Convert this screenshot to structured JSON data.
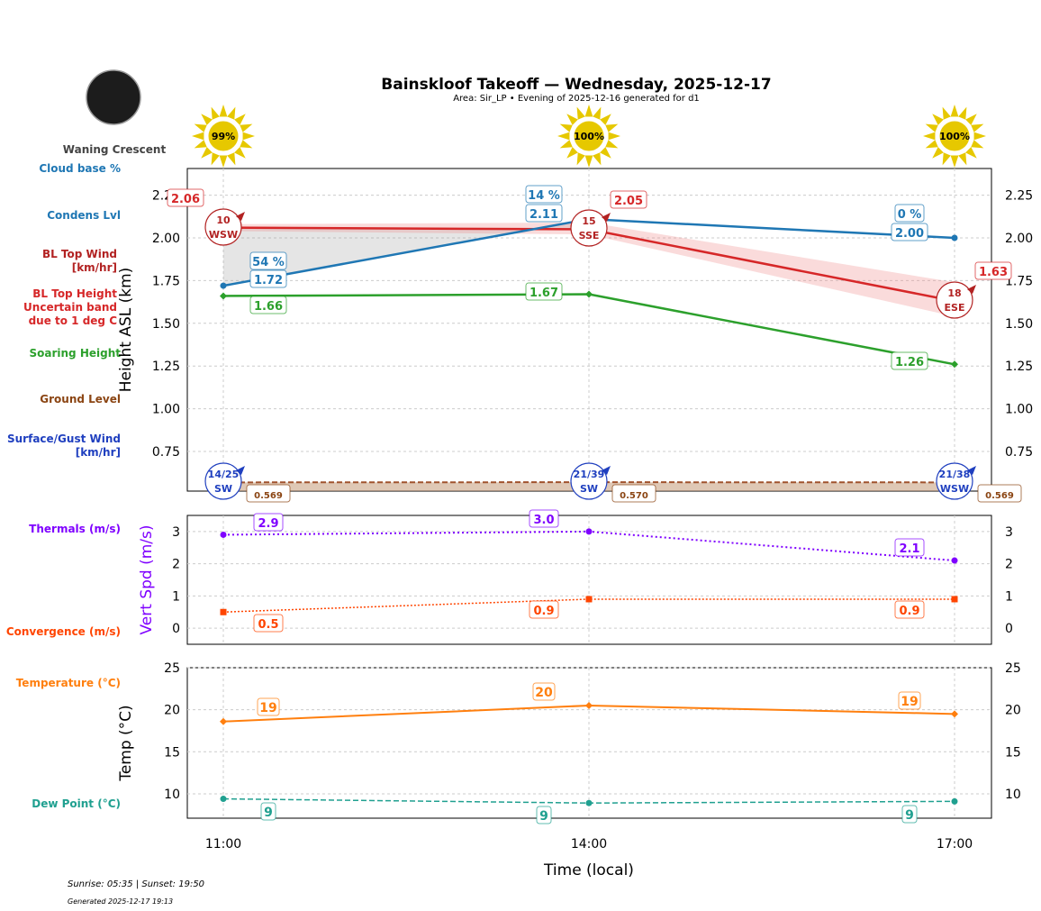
{
  "title": "Bainskloof Takeoff — Wednesday, 2025-12-17",
  "subtitle": "Area: Sir_LP • Evening of 2025-12-16 generated for d1",
  "moon_phase": "Waning Crescent",
  "footer": {
    "sun": "Sunrise: 05:35 | Sunset: 19:50",
    "generated": "Generated 2025-12-17 19:13"
  },
  "side_labels": [
    {
      "text": "Cloud base %",
      "color": "#1f77b4"
    },
    {
      "text": "Condens Lvl",
      "color": "#1f77b4"
    },
    {
      "text": "BL Top Wind [km/hr]",
      "color": "#b22222"
    },
    {
      "text": "BL Top Height Uncertain band due to 1 deg C",
      "color": "#d62728"
    },
    {
      "text": "Soaring Height",
      "color": "#2ca02c"
    },
    {
      "text": "Ground Level",
      "color": "#8b4513"
    },
    {
      "text": "Surface/Gust Wind [km/hr]",
      "color": "#1f3fbf"
    },
    {
      "text": "Thermals (m/s)",
      "color": "#7f00ff"
    },
    {
      "text": "Convergence (m/s)",
      "color": "#ff4500"
    },
    {
      "text": "Temperature (°C)",
      "color": "#ff7f0e"
    },
    {
      "text": "Dew Point (°C)",
      "color": "#20a090"
    }
  ],
  "chart_data": [
    {
      "type": "line",
      "xlabel": "",
      "ylabel": "Height ASL (km)",
      "ylim": [
        0.518,
        2.406
      ],
      "yticks": [
        "0.75",
        "1.00",
        "1.25",
        "1.50",
        "1.75",
        "2.00",
        "2.25"
      ],
      "grid": true,
      "x": [
        "11:00",
        "14:00",
        "17:00"
      ],
      "sun_percent": [
        "99%",
        "100%",
        "100%"
      ],
      "cloud_base_percent": [
        "54 %",
        "14 %",
        "0 %"
      ],
      "condens_lvl": [
        1.72,
        2.11,
        2.0
      ],
      "bl_top": [
        2.06,
        2.05,
        1.63
      ],
      "bl_top_band": [
        [
          2.04,
          2.08
        ],
        [
          2.02,
          2.09
        ],
        [
          1.54,
          1.74
        ]
      ],
      "bl_wind": [
        {
          "speed": "10",
          "dir": "WSW"
        },
        {
          "speed": "15",
          "dir": "SSE"
        },
        {
          "speed": "18",
          "dir": "ESE"
        }
      ],
      "soaring": [
        1.66,
        1.67,
        1.26
      ],
      "ground": [
        0.569,
        0.57,
        0.569
      ],
      "surface_wind": [
        {
          "speed": "14/25",
          "dir": "SW"
        },
        {
          "speed": "21/39",
          "dir": "SW"
        },
        {
          "speed": "21/38",
          "dir": "WSW"
        }
      ]
    },
    {
      "type": "line",
      "ylabel": "Vert Spd (m/s)",
      "ylim": [
        -0.5,
        3.5
      ],
      "yticks": [
        "0",
        "1",
        "2",
        "3"
      ],
      "grid": true,
      "thermals": [
        2.9,
        3.0,
        2.1
      ],
      "convergence": [
        0.5,
        0.9,
        0.9
      ]
    },
    {
      "type": "line",
      "ylabel": "Temp (°C)",
      "xlabel": "Time (local)",
      "ylim": [
        7.1,
        25
      ],
      "yticks": [
        "10",
        "15",
        "20",
        "25"
      ],
      "grid": true,
      "x": [
        "11:00",
        "14:00",
        "17:00"
      ],
      "temperature": [
        18.6,
        20.5,
        19.5
      ],
      "temperature_labels": [
        "19",
        "20",
        "19"
      ],
      "dew_point": [
        9.4,
        8.9,
        9.1
      ],
      "dew_point_labels": [
        "9",
        "9",
        "9"
      ]
    }
  ]
}
